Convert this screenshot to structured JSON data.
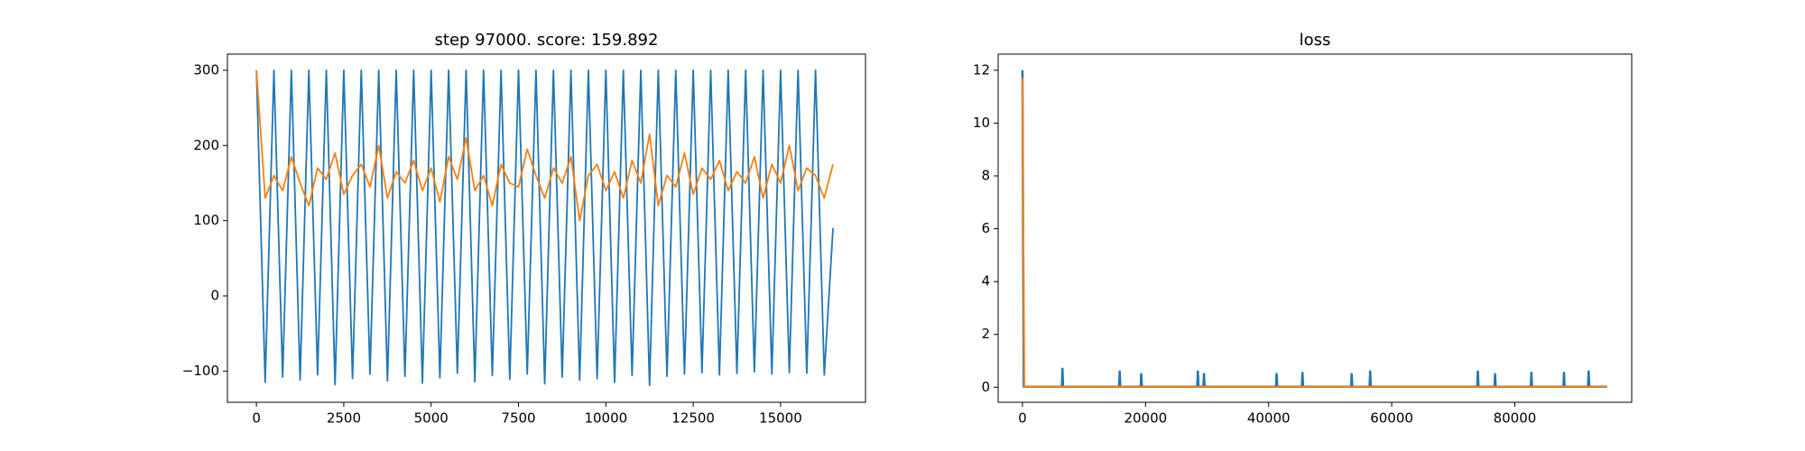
{
  "chart_data": [
    {
      "type": "line",
      "title": "step 97000. score: 159.892",
      "x": [
        0,
        250,
        500,
        750,
        1000,
        1250,
        1500,
        1750,
        2000,
        2250,
        2500,
        2750,
        3000,
        3250,
        3500,
        3750,
        4000,
        4250,
        4500,
        4750,
        5000,
        5250,
        5500,
        5750,
        6000,
        6250,
        6500,
        6750,
        7000,
        7250,
        7500,
        7750,
        8000,
        8250,
        8500,
        8750,
        9000,
        9250,
        9500,
        9750,
        10000,
        10250,
        10500,
        10750,
        11000,
        11250,
        11500,
        11750,
        12000,
        12250,
        12500,
        12750,
        13000,
        13250,
        13500,
        13750,
        14000,
        14250,
        14500,
        14750,
        15000,
        15250,
        15500,
        15750,
        16000,
        16250,
        16500
      ],
      "series": [
        {
          "color": "#1f77b4",
          "values": [
            300,
            -115,
            300,
            -108,
            300,
            -112,
            300,
            -105,
            300,
            -118,
            300,
            -110,
            300,
            -104,
            300,
            -113,
            300,
            -107,
            300,
            -116,
            300,
            -109,
            300,
            -103,
            300,
            -114,
            300,
            -106,
            300,
            -111,
            300,
            -104,
            300,
            -117,
            300,
            -108,
            300,
            -112,
            300,
            -110,
            300,
            -115,
            300,
            -106,
            300,
            -119,
            300,
            -107,
            300,
            -104,
            300,
            -102,
            300,
            -105,
            300,
            -103,
            300,
            -101,
            300,
            -104,
            300,
            -102,
            300,
            -103,
            300,
            -105,
            90
          ]
        },
        {
          "color": "#ff7f0e",
          "values": [
            300,
            130,
            160,
            140,
            185,
            150,
            120,
            170,
            155,
            190,
            135,
            160,
            175,
            145,
            200,
            130,
            165,
            150,
            180,
            140,
            170,
            125,
            185,
            155,
            210,
            140,
            160,
            120,
            175,
            150,
            145,
            195,
            160,
            130,
            170,
            150,
            185,
            100,
            160,
            175,
            140,
            165,
            130,
            180,
            150,
            215,
            120,
            160,
            145,
            190,
            135,
            170,
            155,
            180,
            140,
            165,
            150,
            185,
            130,
            175,
            150,
            200,
            140,
            170,
            160,
            130,
            175
          ]
        }
      ],
      "xlim": [
        -830,
        17430
      ],
      "ylim": [
        -141.5,
        321.5
      ],
      "xticks": [
        0,
        2500,
        5000,
        7500,
        10000,
        12500,
        15000
      ],
      "yticks": [
        {
          "value": -100,
          "label": "−100"
        },
        0,
        100,
        200,
        300
      ]
    },
    {
      "type": "line",
      "title": "loss",
      "series": [
        {
          "color": "#1f77b4",
          "width": 2.5,
          "x": [
            0,
            200,
            6400,
            6500,
            6600,
            15700,
            15800,
            15900,
            19200,
            19300,
            19400,
            28400,
            28500,
            28600,
            29400,
            29500,
            29600,
            41200,
            41300,
            41400,
            45400,
            45500,
            45600,
            53400,
            53500,
            53600,
            56400,
            56500,
            56600,
            73900,
            74000,
            74100,
            76700,
            76800,
            76900,
            82600,
            82700,
            82800,
            87900,
            88000,
            88100,
            91900,
            92000,
            92100,
            95000
          ],
          "values": [
            12,
            0.02,
            0.02,
            0.7,
            0.02,
            0.02,
            0.6,
            0.02,
            0.02,
            0.5,
            0.02,
            0.02,
            0.6,
            0.02,
            0.02,
            0.5,
            0.02,
            0.02,
            0.5,
            0.02,
            0.02,
            0.55,
            0.02,
            0.02,
            0.5,
            0.02,
            0.02,
            0.6,
            0.02,
            0.02,
            0.6,
            0.02,
            0.02,
            0.5,
            0.02,
            0.02,
            0.55,
            0.02,
            0.02,
            0.55,
            0.02,
            0.02,
            0.6,
            0.02,
            0.02
          ]
        },
        {
          "color": "#ff7f0e",
          "width": 2,
          "x": [
            0,
            300,
            95000
          ],
          "values": [
            11.7,
            0.02,
            0.02
          ]
        }
      ],
      "xlim": [
        -3950,
        99000
      ],
      "ylim": [
        -0.57,
        12.61
      ],
      "xticks": [
        0,
        20000,
        40000,
        60000,
        80000
      ],
      "yticks": [
        0,
        2,
        4,
        6,
        8,
        10,
        12
      ]
    }
  ]
}
